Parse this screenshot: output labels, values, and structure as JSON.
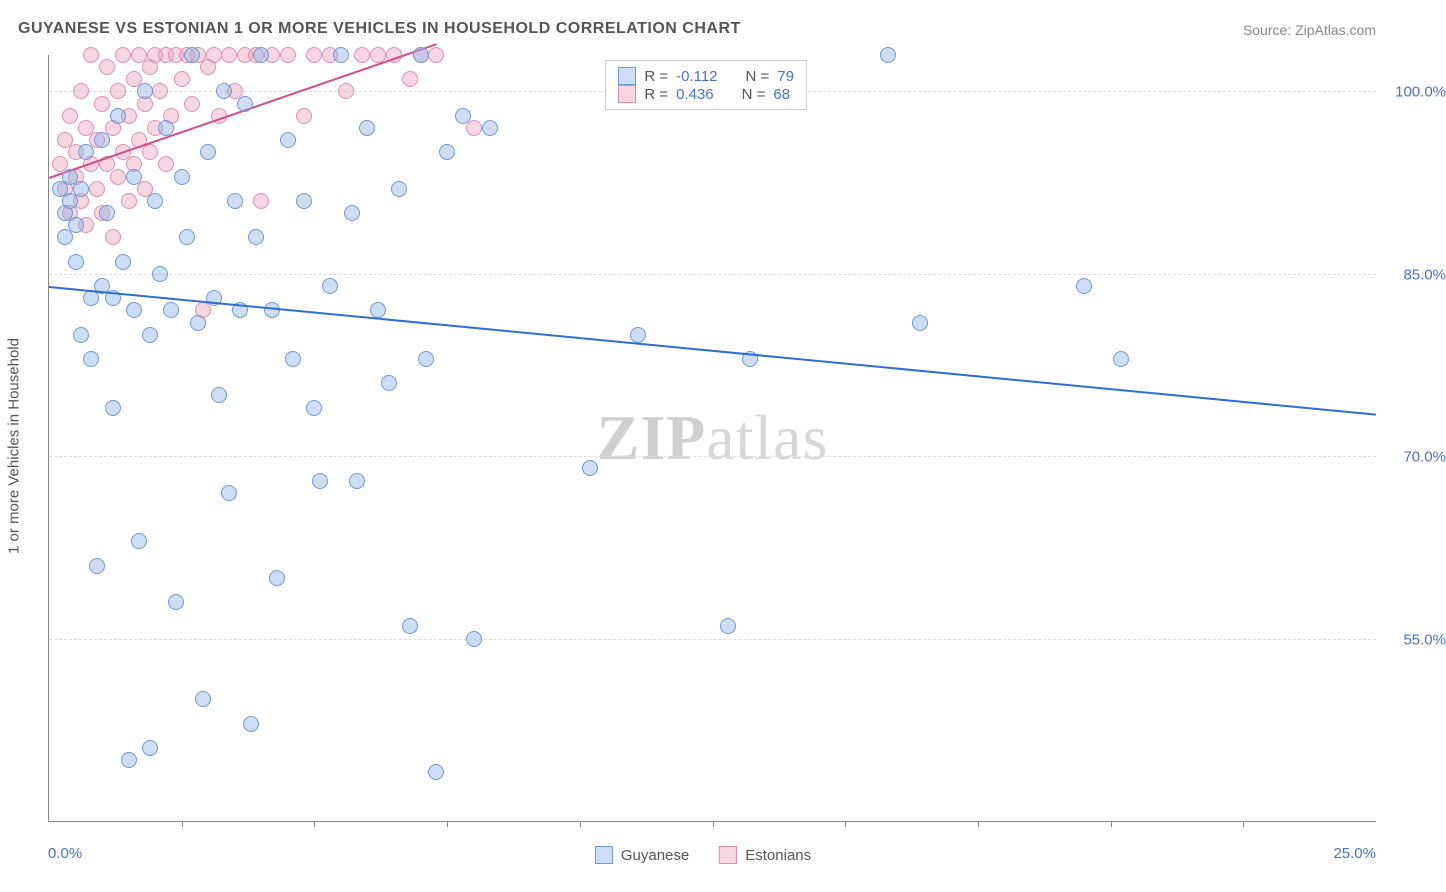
{
  "title": "GUYANESE VS ESTONIAN 1 OR MORE VEHICLES IN HOUSEHOLD CORRELATION CHART",
  "source": "Source: ZipAtlas.com",
  "watermark_a": "ZIP",
  "watermark_b": "atlas",
  "axes": {
    "ylabel": "1 or more Vehicles in Household",
    "x_min_label": "0.0%",
    "x_max_label": "25.0%",
    "xlim": [
      0,
      25
    ],
    "ylim": [
      40,
      103
    ],
    "yticks": [
      {
        "v": 55.0,
        "label": "55.0%"
      },
      {
        "v": 70.0,
        "label": "70.0%"
      },
      {
        "v": 85.0,
        "label": "85.0%"
      },
      {
        "v": 100.0,
        "label": "100.0%"
      }
    ],
    "xticks": [
      2.5,
      5.0,
      7.5,
      10.0,
      12.5,
      15.0,
      17.5,
      20.0,
      22.5
    ],
    "grid_color": "#dddddd",
    "axis_color": "#888888"
  },
  "series": {
    "guyanese": {
      "label": "Guyanese",
      "marker_color_fill": "rgba(144,180,231,0.45)",
      "marker_color_stroke": "#6f99d6",
      "marker_size": 16,
      "trend_color": "#2f6fd0",
      "trend": {
        "x1": 0,
        "y1": 84.0,
        "x2": 25,
        "y2": 73.5
      },
      "R": "-0.112",
      "N": "79",
      "points": [
        [
          0.2,
          92
        ],
        [
          0.3,
          90
        ],
        [
          0.3,
          88
        ],
        [
          0.4,
          93
        ],
        [
          0.4,
          91
        ],
        [
          0.5,
          89
        ],
        [
          0.5,
          86
        ],
        [
          0.6,
          92
        ],
        [
          0.6,
          80
        ],
        [
          0.7,
          95
        ],
        [
          0.8,
          83
        ],
        [
          0.8,
          78
        ],
        [
          0.9,
          61
        ],
        [
          1.0,
          96
        ],
        [
          1.0,
          84
        ],
        [
          1.1,
          90
        ],
        [
          1.2,
          83
        ],
        [
          1.2,
          74
        ],
        [
          1.3,
          98
        ],
        [
          1.4,
          86
        ],
        [
          1.5,
          45
        ],
        [
          1.6,
          93
        ],
        [
          1.6,
          82
        ],
        [
          1.7,
          63
        ],
        [
          1.8,
          100
        ],
        [
          1.9,
          80
        ],
        [
          1.9,
          46
        ],
        [
          2.0,
          91
        ],
        [
          2.1,
          85
        ],
        [
          2.2,
          97
        ],
        [
          2.3,
          82
        ],
        [
          2.4,
          58
        ],
        [
          2.5,
          93
        ],
        [
          2.6,
          88
        ],
        [
          2.7,
          103
        ],
        [
          2.8,
          81
        ],
        [
          2.9,
          50
        ],
        [
          3.0,
          95
        ],
        [
          3.1,
          83
        ],
        [
          3.2,
          75
        ],
        [
          3.3,
          100
        ],
        [
          3.4,
          67
        ],
        [
          3.5,
          91
        ],
        [
          3.6,
          82
        ],
        [
          3.7,
          99
        ],
        [
          3.8,
          48
        ],
        [
          3.9,
          88
        ],
        [
          4.0,
          103
        ],
        [
          4.2,
          82
        ],
        [
          4.3,
          60
        ],
        [
          4.5,
          96
        ],
        [
          4.6,
          78
        ],
        [
          4.8,
          91
        ],
        [
          5.0,
          74
        ],
        [
          5.1,
          68
        ],
        [
          5.3,
          84
        ],
        [
          5.5,
          103
        ],
        [
          5.7,
          90
        ],
        [
          5.8,
          68
        ],
        [
          6.0,
          97
        ],
        [
          6.2,
          82
        ],
        [
          6.4,
          76
        ],
        [
          6.6,
          92
        ],
        [
          6.8,
          56
        ],
        [
          7.0,
          103
        ],
        [
          7.1,
          78
        ],
        [
          7.3,
          44
        ],
        [
          7.5,
          95
        ],
        [
          7.8,
          98
        ],
        [
          8.0,
          55
        ],
        [
          8.3,
          97
        ],
        [
          10.2,
          69
        ],
        [
          11.1,
          80
        ],
        [
          12.8,
          56
        ],
        [
          13.2,
          78
        ],
        [
          15.8,
          103
        ],
        [
          16.4,
          81
        ],
        [
          19.5,
          84
        ],
        [
          20.2,
          78
        ]
      ]
    },
    "estonians": {
      "label": "Estonians",
      "marker_color_fill": "rgba(236,164,188,0.45)",
      "marker_color_stroke": "#e08fb0",
      "marker_size": 16,
      "trend_color": "#d84b8a",
      "trend": {
        "x1": 0,
        "y1": 93.0,
        "x2": 7.3,
        "y2": 104.0
      },
      "R": "0.436",
      "N": "68",
      "points": [
        [
          0.2,
          94
        ],
        [
          0.3,
          96
        ],
        [
          0.3,
          92
        ],
        [
          0.4,
          98
        ],
        [
          0.4,
          90
        ],
        [
          0.5,
          95
        ],
        [
          0.5,
          93
        ],
        [
          0.6,
          100
        ],
        [
          0.6,
          91
        ],
        [
          0.7,
          97
        ],
        [
          0.7,
          89
        ],
        [
          0.8,
          103
        ],
        [
          0.8,
          94
        ],
        [
          0.9,
          96
        ],
        [
          0.9,
          92
        ],
        [
          1.0,
          99
        ],
        [
          1.0,
          90
        ],
        [
          1.1,
          102
        ],
        [
          1.1,
          94
        ],
        [
          1.2,
          97
        ],
        [
          1.2,
          88
        ],
        [
          1.3,
          100
        ],
        [
          1.3,
          93
        ],
        [
          1.4,
          103
        ],
        [
          1.4,
          95
        ],
        [
          1.5,
          98
        ],
        [
          1.5,
          91
        ],
        [
          1.6,
          101
        ],
        [
          1.6,
          94
        ],
        [
          1.7,
          103
        ],
        [
          1.7,
          96
        ],
        [
          1.8,
          99
        ],
        [
          1.8,
          92
        ],
        [
          1.9,
          102
        ],
        [
          1.9,
          95
        ],
        [
          2.0,
          103
        ],
        [
          2.0,
          97
        ],
        [
          2.1,
          100
        ],
        [
          2.2,
          103
        ],
        [
          2.2,
          94
        ],
        [
          2.3,
          98
        ],
        [
          2.4,
          103
        ],
        [
          2.5,
          101
        ],
        [
          2.6,
          103
        ],
        [
          2.7,
          99
        ],
        [
          2.8,
          103
        ],
        [
          2.9,
          82
        ],
        [
          3.0,
          102
        ],
        [
          3.1,
          103
        ],
        [
          3.2,
          98
        ],
        [
          3.4,
          103
        ],
        [
          3.5,
          100
        ],
        [
          3.7,
          103
        ],
        [
          3.9,
          103
        ],
        [
          4.0,
          91
        ],
        [
          4.2,
          103
        ],
        [
          4.5,
          103
        ],
        [
          4.8,
          98
        ],
        [
          5.0,
          103
        ],
        [
          5.3,
          103
        ],
        [
          5.6,
          100
        ],
        [
          5.9,
          103
        ],
        [
          6.2,
          103
        ],
        [
          6.5,
          103
        ],
        [
          6.8,
          101
        ],
        [
          7.0,
          103
        ],
        [
          7.3,
          103
        ],
        [
          8.0,
          97
        ]
      ]
    }
  },
  "corr_legend": {
    "r_label": "R =",
    "n_label": "N ="
  },
  "colors": {
    "title_color": "#555555",
    "source_color": "#888888",
    "value_color": "#4a72c4",
    "background": "#ffffff"
  },
  "fonts": {
    "title_size": 16,
    "label_size": 15,
    "watermark_size": 64
  }
}
